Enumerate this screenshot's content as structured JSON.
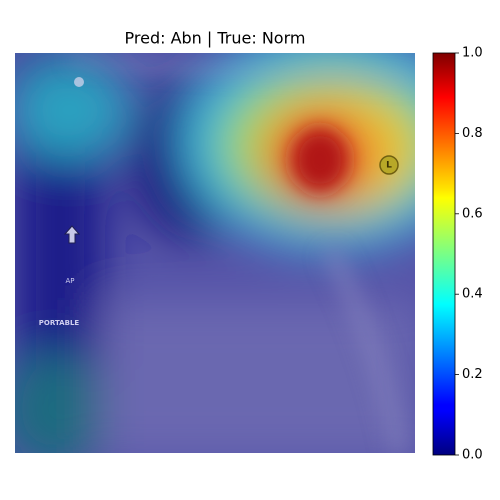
{
  "chart_data": {
    "type": "heatmap",
    "title": "Pred: Abn | True: Norm",
    "colormap": "jet",
    "clim": [
      0,
      1
    ],
    "cticks": [
      {
        "value": 0,
        "label": "0.0"
      },
      {
        "value": 0.2,
        "label": "0.2"
      },
      {
        "value": 0.4,
        "label": "0.4"
      },
      {
        "value": 0.6,
        "label": "0.6"
      },
      {
        "value": 0.8,
        "label": "0.8"
      },
      {
        "value": 1,
        "label": "1.0"
      }
    ],
    "annotations": [
      "AP",
      "PORTABLE",
      "L"
    ]
  }
}
